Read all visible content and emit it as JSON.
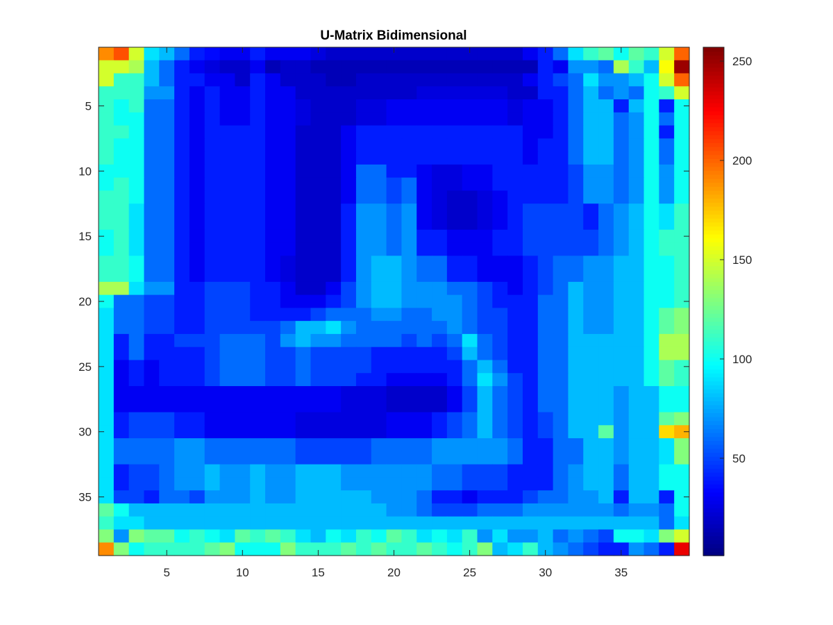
{
  "chart_data": {
    "type": "heatmap",
    "title": "U-Matrix Bidimensional",
    "xlabel": "",
    "ylabel": "",
    "rows": 39,
    "cols": 39,
    "x_ticks": [
      5,
      10,
      15,
      20,
      25,
      30,
      35
    ],
    "y_ticks": [
      5,
      10,
      15,
      20,
      25,
      30,
      35
    ],
    "colormap": "jet",
    "colorbar": {
      "range": [
        1,
        257
      ],
      "ticks": [
        50,
        100,
        150,
        200,
        250
      ]
    },
    "values": [
      [
        190,
        205,
        150,
        90,
        80,
        60,
        40,
        35,
        30,
        30,
        40,
        30,
        30,
        30,
        25,
        20,
        20,
        20,
        20,
        20,
        20,
        20,
        20,
        20,
        20,
        20,
        20,
        20,
        30,
        40,
        60,
        90,
        110,
        120,
        100,
        120,
        110,
        150,
        200
      ],
      [
        150,
        150,
        140,
        80,
        60,
        40,
        30,
        25,
        20,
        20,
        30,
        15,
        20,
        20,
        15,
        15,
        15,
        15,
        15,
        15,
        15,
        15,
        15,
        15,
        15,
        15,
        15,
        15,
        15,
        40,
        30,
        70,
        70,
        60,
        140,
        110,
        80,
        160,
        250
      ],
      [
        150,
        110,
        110,
        80,
        60,
        40,
        40,
        30,
        30,
        20,
        40,
        30,
        20,
        20,
        20,
        15,
        15,
        20,
        20,
        20,
        20,
        20,
        20,
        20,
        20,
        20,
        20,
        20,
        30,
        40,
        50,
        60,
        90,
        70,
        70,
        80,
        100,
        150,
        200
      ],
      [
        110,
        110,
        110,
        70,
        70,
        40,
        30,
        40,
        30,
        30,
        40,
        30,
        30,
        20,
        20,
        20,
        20,
        20,
        20,
        20,
        20,
        25,
        25,
        25,
        25,
        25,
        25,
        20,
        20,
        40,
        40,
        60,
        80,
        60,
        70,
        60,
        100,
        110,
        150
      ],
      [
        110,
        100,
        110,
        60,
        60,
        40,
        30,
        40,
        30,
        30,
        40,
        30,
        30,
        25,
        20,
        20,
        20,
        25,
        25,
        30,
        30,
        30,
        30,
        30,
        30,
        30,
        30,
        25,
        30,
        30,
        40,
        60,
        80,
        80,
        40,
        80,
        100,
        40,
        100
      ],
      [
        110,
        100,
        100,
        60,
        60,
        40,
        30,
        40,
        30,
        30,
        40,
        30,
        30,
        25,
        20,
        20,
        20,
        25,
        25,
        30,
        30,
        30,
        30,
        30,
        30,
        30,
        30,
        25,
        30,
        30,
        40,
        60,
        80,
        80,
        60,
        70,
        100,
        60,
        100
      ],
      [
        110,
        110,
        100,
        60,
        60,
        40,
        30,
        40,
        40,
        40,
        40,
        30,
        30,
        20,
        20,
        20,
        30,
        40,
        40,
        40,
        40,
        40,
        40,
        40,
        40,
        40,
        40,
        40,
        30,
        30,
        40,
        60,
        80,
        80,
        60,
        70,
        100,
        40,
        100
      ],
      [
        110,
        100,
        100,
        60,
        60,
        40,
        30,
        40,
        40,
        40,
        40,
        30,
        30,
        20,
        20,
        20,
        30,
        40,
        40,
        40,
        40,
        40,
        40,
        40,
        40,
        40,
        40,
        40,
        30,
        40,
        40,
        60,
        80,
        80,
        60,
        70,
        100,
        60,
        100
      ],
      [
        110,
        100,
        100,
        60,
        60,
        40,
        30,
        40,
        40,
        40,
        40,
        30,
        30,
        20,
        20,
        20,
        30,
        40,
        40,
        40,
        40,
        40,
        40,
        40,
        40,
        40,
        40,
        40,
        30,
        40,
        40,
        60,
        80,
        80,
        60,
        70,
        100,
        60,
        100
      ],
      [
        100,
        100,
        100,
        60,
        60,
        40,
        30,
        40,
        40,
        40,
        40,
        30,
        30,
        20,
        20,
        20,
        30,
        60,
        60,
        40,
        40,
        30,
        25,
        25,
        30,
        30,
        40,
        40,
        40,
        40,
        40,
        50,
        70,
        70,
        60,
        70,
        100,
        70,
        100
      ],
      [
        100,
        110,
        100,
        60,
        60,
        40,
        30,
        40,
        40,
        40,
        40,
        30,
        30,
        20,
        20,
        20,
        30,
        60,
        60,
        50,
        60,
        30,
        25,
        25,
        30,
        30,
        40,
        40,
        40,
        40,
        40,
        50,
        70,
        70,
        60,
        70,
        100,
        70,
        100
      ],
      [
        110,
        110,
        100,
        60,
        60,
        40,
        30,
        40,
        40,
        40,
        40,
        30,
        30,
        20,
        20,
        20,
        30,
        60,
        60,
        50,
        60,
        30,
        25,
        20,
        20,
        25,
        30,
        40,
        40,
        40,
        40,
        50,
        70,
        70,
        60,
        70,
        100,
        70,
        100
      ],
      [
        110,
        110,
        90,
        60,
        60,
        40,
        30,
        40,
        40,
        40,
        40,
        30,
        30,
        20,
        20,
        20,
        40,
        70,
        70,
        60,
        70,
        30,
        25,
        20,
        20,
        25,
        30,
        40,
        50,
        50,
        50,
        50,
        40,
        60,
        70,
        80,
        100,
        90,
        110
      ],
      [
        110,
        110,
        90,
        60,
        60,
        40,
        30,
        40,
        40,
        40,
        40,
        30,
        30,
        20,
        20,
        20,
        40,
        70,
        70,
        60,
        70,
        30,
        25,
        20,
        20,
        25,
        30,
        40,
        50,
        50,
        50,
        50,
        40,
        60,
        70,
        80,
        100,
        90,
        110
      ],
      [
        100,
        110,
        90,
        60,
        60,
        40,
        30,
        40,
        40,
        40,
        40,
        30,
        30,
        20,
        20,
        20,
        40,
        70,
        70,
        60,
        70,
        40,
        40,
        30,
        30,
        30,
        40,
        40,
        50,
        50,
        50,
        50,
        50,
        60,
        70,
        80,
        100,
        110,
        110
      ],
      [
        100,
        110,
        90,
        60,
        60,
        40,
        30,
        40,
        40,
        40,
        40,
        30,
        30,
        20,
        20,
        20,
        40,
        70,
        70,
        60,
        70,
        40,
        40,
        30,
        30,
        30,
        40,
        40,
        50,
        50,
        50,
        50,
        50,
        60,
        70,
        80,
        100,
        110,
        110
      ],
      [
        110,
        110,
        100,
        60,
        60,
        40,
        30,
        40,
        40,
        40,
        40,
        30,
        25,
        20,
        20,
        20,
        40,
        70,
        80,
        80,
        70,
        60,
        60,
        40,
        40,
        30,
        30,
        30,
        40,
        50,
        60,
        60,
        70,
        70,
        80,
        80,
        100,
        100,
        110
      ],
      [
        110,
        110,
        100,
        60,
        60,
        40,
        30,
        40,
        40,
        40,
        40,
        30,
        25,
        20,
        20,
        20,
        40,
        70,
        80,
        80,
        70,
        60,
        60,
        40,
        40,
        30,
        30,
        30,
        40,
        50,
        60,
        60,
        70,
        70,
        80,
        80,
        100,
        100,
        110
      ],
      [
        140,
        140,
        90,
        70,
        70,
        40,
        40,
        50,
        50,
        50,
        40,
        40,
        30,
        20,
        20,
        30,
        50,
        70,
        80,
        80,
        70,
        70,
        70,
        60,
        60,
        50,
        40,
        30,
        40,
        50,
        60,
        80,
        70,
        70,
        80,
        80,
        100,
        100,
        110
      ],
      [
        100,
        60,
        60,
        50,
        50,
        40,
        40,
        50,
        50,
        50,
        40,
        40,
        30,
        30,
        30,
        40,
        50,
        70,
        80,
        80,
        70,
        70,
        70,
        70,
        60,
        50,
        40,
        40,
        40,
        60,
        60,
        80,
        70,
        70,
        80,
        80,
        100,
        100,
        110
      ],
      [
        90,
        60,
        60,
        50,
        50,
        40,
        40,
        50,
        50,
        50,
        40,
        40,
        40,
        40,
        50,
        60,
        60,
        60,
        70,
        70,
        60,
        60,
        70,
        70,
        60,
        50,
        50,
        40,
        40,
        60,
        60,
        80,
        70,
        70,
        80,
        80,
        100,
        120,
        130
      ],
      [
        90,
        60,
        60,
        50,
        50,
        40,
        40,
        50,
        50,
        50,
        50,
        50,
        60,
        80,
        80,
        90,
        70,
        60,
        60,
        60,
        60,
        60,
        60,
        70,
        60,
        50,
        50,
        40,
        40,
        60,
        60,
        80,
        70,
        70,
        80,
        80,
        100,
        120,
        130
      ],
      [
        90,
        40,
        60,
        40,
        40,
        50,
        50,
        50,
        60,
        60,
        60,
        50,
        70,
        80,
        70,
        70,
        60,
        60,
        60,
        60,
        50,
        60,
        50,
        60,
        90,
        60,
        50,
        40,
        40,
        60,
        60,
        80,
        80,
        80,
        80,
        80,
        100,
        140,
        140
      ],
      [
        90,
        40,
        60,
        40,
        40,
        40,
        40,
        50,
        60,
        60,
        60,
        50,
        50,
        60,
        50,
        50,
        50,
        50,
        40,
        40,
        40,
        40,
        40,
        50,
        80,
        60,
        50,
        40,
        40,
        60,
        60,
        80,
        80,
        80,
        80,
        80,
        100,
        140,
        140
      ],
      [
        90,
        30,
        40,
        30,
        40,
        40,
        40,
        50,
        60,
        60,
        60,
        50,
        50,
        60,
        50,
        50,
        50,
        50,
        40,
        40,
        40,
        40,
        40,
        40,
        60,
        80,
        60,
        40,
        40,
        60,
        60,
        80,
        80,
        80,
        80,
        80,
        100,
        120,
        110
      ],
      [
        90,
        30,
        40,
        30,
        40,
        40,
        40,
        50,
        60,
        60,
        60,
        50,
        50,
        60,
        50,
        50,
        50,
        40,
        40,
        30,
        30,
        30,
        30,
        40,
        60,
        90,
        70,
        50,
        40,
        60,
        60,
        80,
        80,
        80,
        80,
        80,
        100,
        120,
        110
      ],
      [
        90,
        30,
        30,
        30,
        30,
        30,
        30,
        30,
        30,
        30,
        30,
        30,
        30,
        30,
        30,
        30,
        25,
        25,
        25,
        20,
        20,
        20,
        20,
        30,
        50,
        80,
        60,
        50,
        40,
        60,
        60,
        80,
        80,
        80,
        70,
        80,
        80,
        100,
        100
      ],
      [
        90,
        30,
        30,
        30,
        30,
        30,
        30,
        30,
        30,
        30,
        30,
        30,
        30,
        30,
        30,
        30,
        25,
        25,
        25,
        20,
        20,
        20,
        20,
        30,
        50,
        80,
        60,
        50,
        40,
        60,
        60,
        80,
        80,
        80,
        70,
        80,
        80,
        100,
        100
      ],
      [
        90,
        40,
        50,
        50,
        50,
        40,
        40,
        30,
        30,
        30,
        30,
        30,
        30,
        25,
        25,
        25,
        25,
        25,
        25,
        30,
        30,
        30,
        40,
        50,
        60,
        80,
        60,
        50,
        40,
        50,
        60,
        80,
        80,
        80,
        70,
        80,
        80,
        120,
        130
      ],
      [
        90,
        40,
        50,
        50,
        50,
        40,
        40,
        30,
        30,
        30,
        30,
        30,
        30,
        25,
        25,
        25,
        25,
        25,
        25,
        30,
        30,
        30,
        40,
        50,
        60,
        80,
        60,
        50,
        40,
        50,
        60,
        80,
        80,
        120,
        70,
        80,
        80,
        170,
        180
      ],
      [
        90,
        60,
        60,
        60,
        60,
        70,
        70,
        60,
        60,
        60,
        60,
        60,
        60,
        50,
        50,
        50,
        50,
        50,
        60,
        60,
        60,
        60,
        70,
        70,
        70,
        70,
        70,
        60,
        40,
        40,
        60,
        60,
        80,
        80,
        70,
        80,
        80,
        90,
        130
      ],
      [
        90,
        60,
        60,
        60,
        60,
        70,
        70,
        60,
        60,
        60,
        60,
        60,
        60,
        50,
        50,
        50,
        50,
        50,
        60,
        60,
        60,
        60,
        70,
        70,
        70,
        70,
        70,
        60,
        40,
        40,
        60,
        60,
        80,
        80,
        70,
        80,
        80,
        90,
        130
      ],
      [
        90,
        40,
        50,
        50,
        60,
        70,
        70,
        80,
        70,
        70,
        80,
        70,
        70,
        80,
        80,
        80,
        70,
        70,
        70,
        70,
        70,
        70,
        60,
        60,
        50,
        50,
        50,
        40,
        40,
        40,
        60,
        70,
        80,
        80,
        60,
        80,
        80,
        100,
        100
      ],
      [
        90,
        40,
        50,
        50,
        60,
        70,
        70,
        80,
        70,
        70,
        80,
        70,
        70,
        80,
        80,
        80,
        70,
        70,
        70,
        70,
        70,
        70,
        60,
        60,
        50,
        50,
        50,
        40,
        40,
        40,
        60,
        70,
        80,
        80,
        60,
        80,
        80,
        100,
        100
      ],
      [
        90,
        50,
        50,
        40,
        60,
        60,
        50,
        70,
        70,
        70,
        80,
        70,
        70,
        80,
        80,
        80,
        80,
        80,
        70,
        70,
        70,
        60,
        40,
        40,
        30,
        40,
        40,
        40,
        50,
        60,
        60,
        70,
        70,
        80,
        40,
        80,
        80,
        40,
        100
      ],
      [
        120,
        100,
        80,
        80,
        80,
        80,
        80,
        80,
        80,
        80,
        80,
        80,
        80,
        80,
        80,
        80,
        80,
        80,
        80,
        70,
        70,
        60,
        50,
        50,
        50,
        60,
        60,
        60,
        70,
        70,
        70,
        70,
        70,
        70,
        60,
        70,
        70,
        60,
        100
      ],
      [
        110,
        90,
        90,
        80,
        80,
        80,
        80,
        80,
        80,
        80,
        80,
        80,
        80,
        80,
        80,
        80,
        80,
        80,
        80,
        80,
        80,
        80,
        80,
        80,
        80,
        80,
        80,
        80,
        80,
        80,
        80,
        80,
        80,
        80,
        80,
        80,
        80,
        60,
        90
      ],
      [
        130,
        70,
        130,
        120,
        120,
        100,
        110,
        100,
        90,
        120,
        110,
        120,
        110,
        90,
        80,
        100,
        90,
        110,
        100,
        120,
        110,
        90,
        100,
        90,
        110,
        70,
        90,
        70,
        70,
        80,
        60,
        70,
        60,
        50,
        100,
        100,
        90,
        130,
        150
      ],
      [
        190,
        130,
        100,
        110,
        110,
        110,
        110,
        120,
        130,
        100,
        100,
        100,
        130,
        110,
        110,
        110,
        120,
        110,
        120,
        110,
        110,
        120,
        110,
        100,
        110,
        130,
        80,
        90,
        110,
        80,
        70,
        60,
        50,
        40,
        40,
        70,
        60,
        40,
        230
      ]
    ]
  }
}
